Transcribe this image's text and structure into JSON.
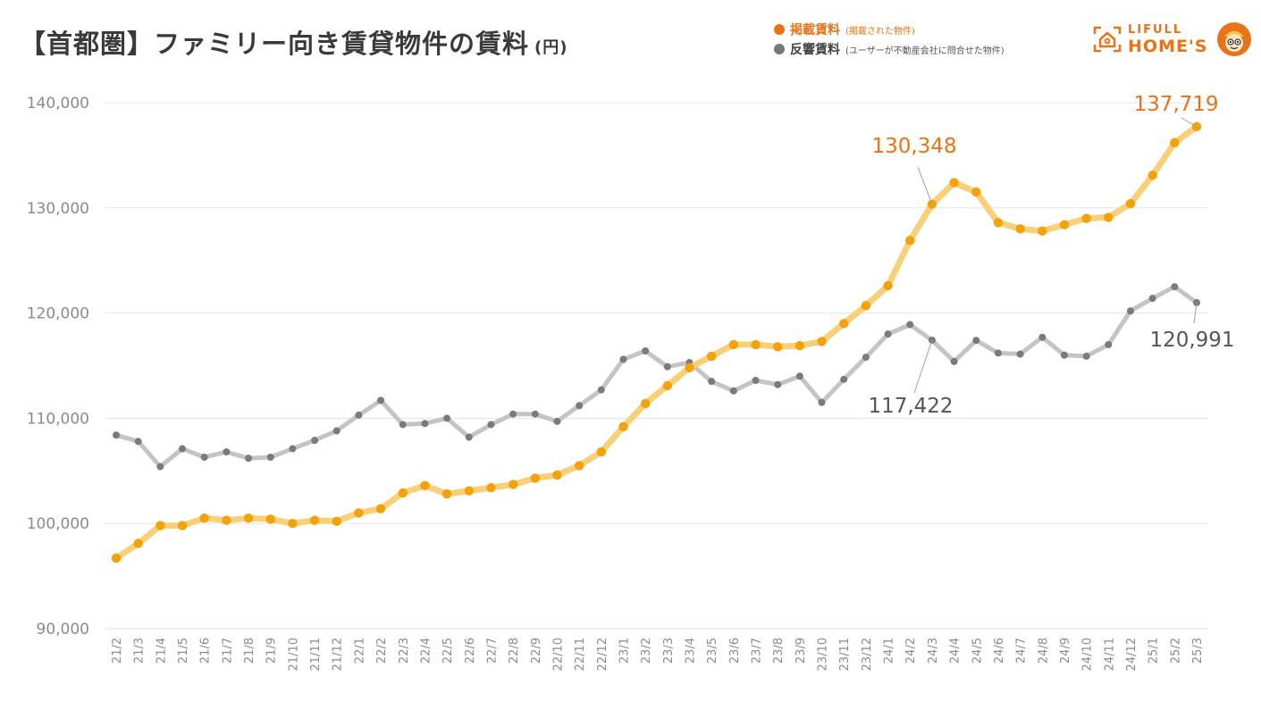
{
  "header": {
    "title": "【首都圏】ファミリー向き賃貸物件の賃料",
    "unit": "(円)"
  },
  "legend": {
    "items": [
      {
        "label": "掲載賃料",
        "sublabel": "(掲載された物件)",
        "color": "#e8731a"
      },
      {
        "label": "反響賃料",
        "sublabel": "(ユーザーが不動産会社に問合せた物件)",
        "color": "#777777"
      }
    ]
  },
  "logo": {
    "top": "LIFULL",
    "bottom": "HOME'S"
  },
  "colors": {
    "listing_line": "#f9d07a",
    "listing_dot": "#f2a20a",
    "inquiry_line": "#c4c4c4",
    "inquiry_dot": "#7a7a7a",
    "annotation_orange": "#e8731a",
    "annotation_gray": "#555555"
  },
  "chart_data": {
    "type": "line",
    "title": "【首都圏】ファミリー向き賃貸物件の賃料",
    "ylabel": "(円)",
    "xlabel": "",
    "ylim": [
      90000,
      140000
    ],
    "yticks": [
      90000,
      100000,
      110000,
      120000,
      130000,
      140000
    ],
    "ytick_labels": [
      "90,000",
      "100,000",
      "110,000",
      "120,000",
      "130,000",
      "140,000"
    ],
    "grid": true,
    "legend_position": "top-right",
    "categories": [
      "21/2",
      "21/3",
      "21/4",
      "21/5",
      "21/6",
      "21/7",
      "21/8",
      "21/9",
      "21/10",
      "21/11",
      "21/12",
      "22/1",
      "22/2",
      "22/3",
      "22/4",
      "22/5",
      "22/6",
      "22/7",
      "22/8",
      "22/9",
      "22/10",
      "22/11",
      "22/12",
      "23/1",
      "23/2",
      "23/3",
      "23/4",
      "23/5",
      "23/6",
      "23/7",
      "23/8",
      "23/9",
      "23/10",
      "23/11",
      "23/12",
      "24/1",
      "24/2",
      "24/3",
      "24/4",
      "24/5",
      "24/6",
      "24/7",
      "24/8",
      "24/9",
      "24/10",
      "24/11",
      "24/12",
      "25/1",
      "25/2",
      "25/3"
    ],
    "series": [
      {
        "name": "掲載賃料",
        "values": [
          96700,
          98100,
          99800,
          99800,
          100500,
          100300,
          100500,
          100400,
          100000,
          100300,
          100200,
          101000,
          101400,
          102900,
          103600,
          102800,
          103100,
          103400,
          103700,
          104300,
          104600,
          105500,
          106800,
          109200,
          111400,
          113100,
          114800,
          115900,
          117000,
          117000,
          116800,
          116900,
          117300,
          119000,
          120700,
          122600,
          126900,
          130348,
          132400,
          131500,
          128600,
          128000,
          127800,
          128400,
          129000,
          129100,
          130400,
          133100,
          136200,
          137719
        ]
      },
      {
        "name": "反響賃料",
        "values": [
          108400,
          107800,
          105400,
          107100,
          106300,
          106800,
          106200,
          106300,
          107100,
          107900,
          108800,
          110300,
          111700,
          109400,
          109500,
          110000,
          108200,
          109400,
          110400,
          110400,
          109700,
          111200,
          112700,
          115600,
          116400,
          114900,
          115300,
          113500,
          112600,
          113600,
          113200,
          114000,
          111500,
          113700,
          115800,
          118000,
          118900,
          117422,
          115400,
          117400,
          116200,
          116100,
          117700,
          116000,
          115900,
          117000,
          120200,
          121400,
          122500,
          120991
        ]
      }
    ],
    "annotations": [
      {
        "series": "掲載賃料",
        "category": "24/3",
        "text": "130,348"
      },
      {
        "series": "掲載賃料",
        "category": "25/3",
        "text": "137,719"
      },
      {
        "series": "反響賃料",
        "category": "24/3",
        "text": "117,422"
      },
      {
        "series": "反響賃料",
        "category": "25/3",
        "text": "120,991"
      }
    ]
  }
}
